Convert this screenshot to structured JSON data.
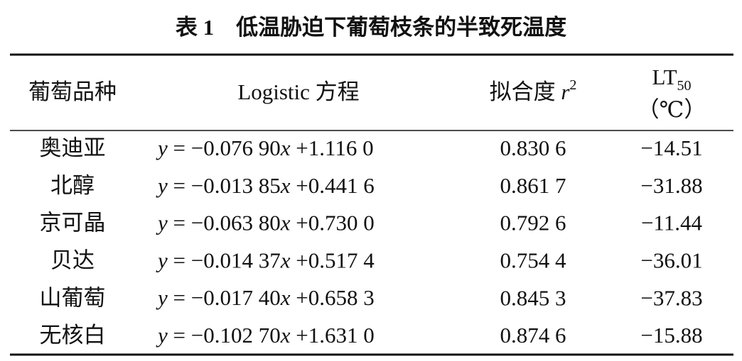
{
  "title": "表 1　低温胁迫下葡萄枝条的半致死温度",
  "table": {
    "header": {
      "variety": "葡萄品种",
      "equation": "Logistic 方程",
      "fit": {
        "text": "拟合度 ",
        "var": "r",
        "sup": "2"
      },
      "lt": {
        "text": "LT",
        "sub": "50",
        "unit": "（℃）"
      }
    },
    "rows": [
      {
        "variety": "奥迪亚",
        "equation": [
          "y",
          " = −0.076 90",
          "x",
          " +1.116 0"
        ],
        "fit": "0.830 6",
        "lt": "−14.51"
      },
      {
        "variety": "北醇",
        "equation": [
          "y",
          " = −0.013 85",
          "x",
          " +0.441 6"
        ],
        "fit": "0.861 7",
        "lt": "−31.88"
      },
      {
        "variety": "京可晶",
        "equation": [
          "y",
          " = −0.063 80",
          "x",
          " +0.730 0"
        ],
        "fit": "0.792 6",
        "lt": "−11.44"
      },
      {
        "variety": "贝达",
        "equation": [
          "y",
          " = −0.014 37",
          "x",
          " +0.517 4"
        ],
        "fit": "0.754 4",
        "lt": "−36.01"
      },
      {
        "variety": "山葡萄",
        "equation": [
          "y",
          " = −0.017 40",
          "x",
          " +0.658 3"
        ],
        "fit": "0.845 3",
        "lt": "−37.83"
      },
      {
        "variety": "无核白",
        "equation": [
          "y",
          " = −0.102 70",
          "x",
          " +1.631 0"
        ],
        "fit": "0.874 6",
        "lt": "−15.88"
      }
    ]
  }
}
